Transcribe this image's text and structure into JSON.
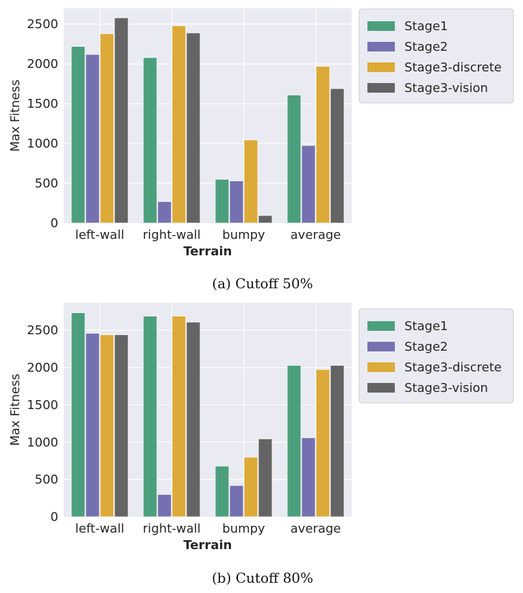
{
  "chart_data": [
    {
      "type": "bar",
      "caption": "(a) Cutoff 50%",
      "categories": [
        "left-wall",
        "right-wall",
        "bumpy",
        "average"
      ],
      "xlabel": "Terrain",
      "ylabel": "Max Fitness",
      "ylim": [
        0,
        2700
      ],
      "yticks": [
        0,
        500,
        1000,
        1500,
        2000,
        2500
      ],
      "grid": true,
      "legend_position": "outside-right",
      "series": [
        {
          "name": "Stage1",
          "color": "#4c9f7c",
          "values": [
            2220,
            2080,
            550,
            1610
          ]
        },
        {
          "name": "Stage2",
          "color": "#7571b1",
          "values": [
            2120,
            270,
            530,
            975
          ]
        },
        {
          "name": "Stage3-discrete",
          "color": "#dcaa38",
          "values": [
            2380,
            2480,
            1045,
            1970
          ]
        },
        {
          "name": "Stage3-vision",
          "color": "#646464",
          "values": [
            2580,
            2390,
            95,
            1690
          ]
        }
      ]
    },
    {
      "type": "bar",
      "caption": "(b) Cutoff 80%",
      "categories": [
        "left-wall",
        "right-wall",
        "bumpy",
        "average"
      ],
      "xlabel": "Terrain",
      "ylabel": "Max Fitness",
      "ylim": [
        0,
        2870
      ],
      "yticks": [
        0,
        500,
        1000,
        1500,
        2000,
        2500
      ],
      "grid": true,
      "legend_position": "outside-right",
      "series": [
        {
          "name": "Stage1",
          "color": "#4c9f7c",
          "values": [
            2735,
            2690,
            680,
            2030
          ]
        },
        {
          "name": "Stage2",
          "color": "#7571b1",
          "values": [
            2460,
            300,
            420,
            1060
          ]
        },
        {
          "name": "Stage3-discrete",
          "color": "#dcaa38",
          "values": [
            2440,
            2690,
            800,
            1975
          ]
        },
        {
          "name": "Stage3-vision",
          "color": "#646464",
          "values": [
            2440,
            2610,
            1045,
            2030
          ]
        }
      ]
    }
  ]
}
